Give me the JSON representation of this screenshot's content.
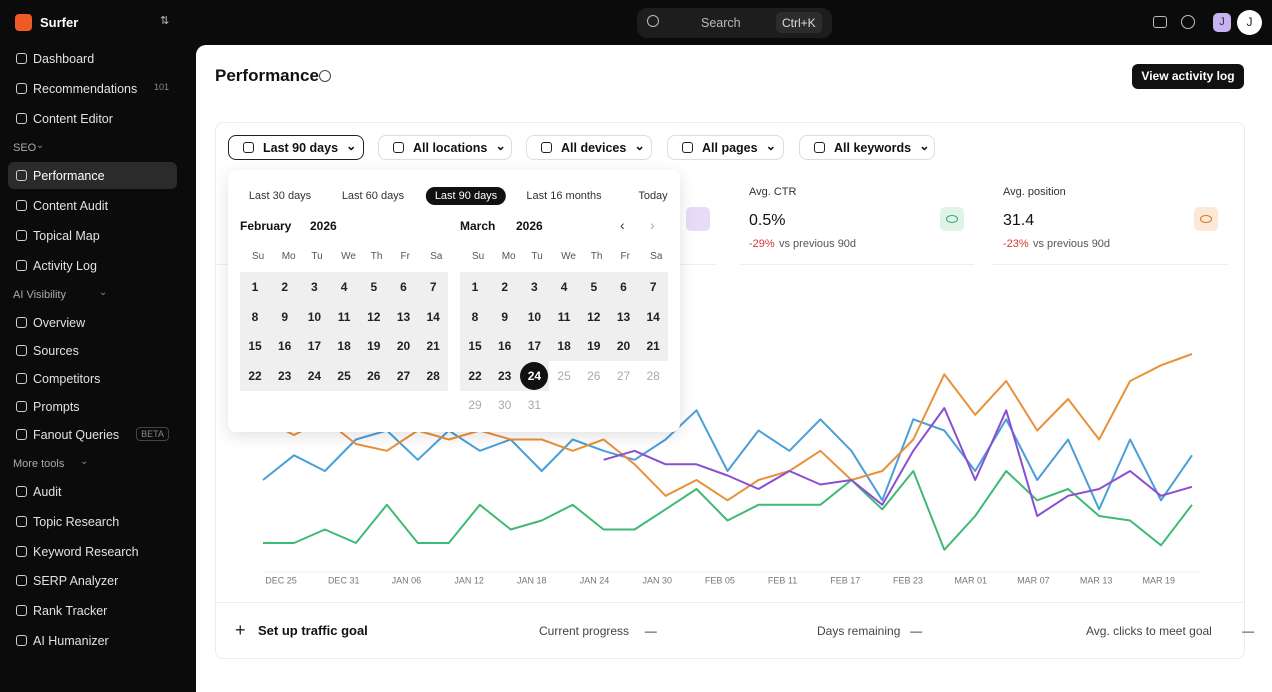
{
  "app": {
    "name": "Surfer"
  },
  "sidebar": {
    "sections": [
      {
        "items": [
          {
            "label": "Dashboard"
          },
          {
            "label": "Recommendations",
            "badge": "101"
          },
          {
            "label": "Content Editor"
          }
        ]
      },
      {
        "title": "SEO",
        "items": [
          {
            "label": "Performance",
            "active": true
          },
          {
            "label": "Content Audit"
          },
          {
            "label": "Topical Map"
          },
          {
            "label": "Activity Log"
          }
        ]
      },
      {
        "title": "AI Visibility",
        "items": [
          {
            "label": "Overview"
          },
          {
            "label": "Sources"
          },
          {
            "label": "Competitors"
          },
          {
            "label": "Prompts"
          },
          {
            "label": "Fanout Queries",
            "badge": "BETA"
          }
        ]
      },
      {
        "title": "More tools",
        "items": [
          {
            "label": "Audit"
          },
          {
            "label": "Topic Research"
          },
          {
            "label": "Keyword Research"
          },
          {
            "label": "SERP Analyzer"
          },
          {
            "label": "Rank Tracker"
          },
          {
            "label": "AI Humanizer"
          }
        ]
      }
    ]
  },
  "topbar": {
    "search": "Search",
    "shortcut": "Ctrl+K",
    "avatar": "J",
    "user": "J"
  },
  "header": {
    "title": "Performance",
    "button": "View activity log"
  },
  "filters": [
    "Last 90 days",
    "All locations",
    "All devices",
    "All pages",
    "All keywords"
  ],
  "datepicker": {
    "ranges": [
      "Last 30 days",
      "Last 60 days",
      "Last 90 days",
      "Last 16 months",
      "Today"
    ],
    "active_range": 2,
    "weekdays": [
      "Su",
      "Mo",
      "Tu",
      "We",
      "Th",
      "Fr",
      "Sa"
    ],
    "months": [
      {
        "month": "February",
        "year": "2026",
        "days": [
          1,
          2,
          3,
          4,
          5,
          6,
          7,
          8,
          9,
          10,
          11,
          12,
          13,
          14,
          15,
          16,
          17,
          18,
          19,
          20,
          21,
          22,
          23,
          24,
          25,
          26,
          27,
          28
        ]
      },
      {
        "month": "March",
        "year": "2026",
        "days": [
          1,
          2,
          3,
          4,
          5,
          6,
          7,
          8,
          9,
          10,
          11,
          12,
          13,
          14,
          15,
          16,
          17,
          18,
          19,
          20,
          21,
          22,
          23,
          24,
          25,
          26,
          27,
          28,
          29,
          30,
          31
        ],
        "selected_day": 24
      }
    ]
  },
  "metrics": [
    {
      "label": "Avg. CTR",
      "value": "0.5%",
      "change": "-29%",
      "compare": "vs previous 90d",
      "color": "#3aa66a",
      "bg": "#dff3e7"
    },
    {
      "label": "Avg. position",
      "value": "31.4",
      "change": "-23%",
      "compare": "vs previous 90d",
      "color": "#d8742b",
      "bg": "#fbe8d6"
    }
  ],
  "chart": {
    "type": "line",
    "ylim": [
      0,
      100
    ],
    "x_labels": [
      "DEC 25",
      "DEC 31",
      "JAN 06",
      "JAN 12",
      "JAN 18",
      "JAN 24",
      "JAN 30",
      "FEB 05",
      "FEB 11",
      "FEB 17",
      "FEB 23",
      "MAR 01",
      "MAR 07",
      "MAR 13",
      "MAR 19"
    ],
    "series": [
      {
        "color": "#3fba74",
        "values": [
          12,
          12,
          18,
          12,
          29,
          12,
          12,
          29,
          18,
          22,
          29,
          18,
          18,
          27,
          36,
          22,
          29,
          29,
          29,
          40,
          27,
          44,
          9,
          24,
          44,
          31,
          36,
          24,
          22,
          11,
          29
        ]
      },
      {
        "color": "#4a9fd8",
        "values": [
          40,
          51,
          44,
          58,
          62,
          49,
          62,
          53,
          58,
          44,
          58,
          53,
          49,
          58,
          71,
          44,
          62,
          53,
          67,
          53,
          31,
          67,
          62,
          44,
          67,
          40,
          58,
          27,
          58,
          31,
          51
        ]
      },
      {
        "color": "#e8913a",
        "values": [
          67,
          60,
          67,
          56,
          53,
          62,
          58,
          62,
          58,
          58,
          53,
          58,
          47,
          33,
          40,
          31,
          40,
          44,
          53,
          40,
          44,
          58,
          87,
          69,
          84,
          62,
          76,
          58,
          84,
          91,
          96
        ]
      },
      {
        "color": "#8a4fd1",
        "values": [
          null,
          null,
          null,
          null,
          null,
          null,
          null,
          null,
          null,
          null,
          null,
          49,
          53,
          47,
          47,
          42,
          36,
          44,
          38,
          40,
          29,
          53,
          72,
          40,
          71,
          24,
          33,
          36,
          44,
          33,
          37
        ]
      }
    ]
  },
  "goal": {
    "action": "Set up traffic goal",
    "items": [
      {
        "label": "Current progress",
        "value": "—"
      },
      {
        "label": "Days remaining",
        "value": "—"
      },
      {
        "label": "Avg. clicks to meet goal",
        "value": "—"
      }
    ]
  }
}
